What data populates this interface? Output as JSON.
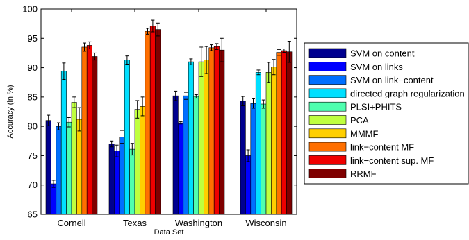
{
  "chart_data": {
    "type": "bar",
    "xlabel": "Data Set",
    "ylabel": "Accuracy (in %)",
    "ylim": [
      65,
      100
    ],
    "yticks": [
      65,
      70,
      75,
      80,
      85,
      90,
      95,
      100
    ],
    "categories": [
      "Cornell",
      "Texas",
      "Washington",
      "Wisconsin"
    ],
    "grid": false,
    "legend_position": "right",
    "error_bars": true,
    "series": [
      {
        "name": "SVM on content",
        "color": "#00008f",
        "values": [
          81.0,
          77.0,
          85.2,
          84.3
        ],
        "errors": [
          0.9,
          0.5,
          0.8,
          0.8
        ]
      },
      {
        "name": "SVM on links",
        "color": "#0000ff",
        "values": [
          70.2,
          75.8,
          80.6,
          75.0
        ],
        "errors": [
          0.6,
          1.0,
          0.2,
          1.0
        ]
      },
      {
        "name": "SVM on link−content",
        "color": "#006fff",
        "values": [
          80.0,
          78.2,
          85.2,
          83.9
        ],
        "errors": [
          0.6,
          1.1,
          0.6,
          0.8
        ]
      },
      {
        "name": "directed graph regularization",
        "color": "#00dfff",
        "values": [
          89.4,
          91.3,
          91.0,
          89.2
        ],
        "errors": [
          1.4,
          0.7,
          0.5,
          0.4
        ]
      },
      {
        "name": "PLSI+PHITS",
        "color": "#4fffaf",
        "values": [
          80.7,
          76.1,
          85.1,
          83.8
        ],
        "errors": [
          0.8,
          1.0,
          0.3,
          0.7
        ]
      },
      {
        "name": "PCA",
        "color": "#bfff3f",
        "values": [
          84.1,
          82.9,
          91.0,
          89.2
        ],
        "errors": [
          0.9,
          1.5,
          2.5,
          1.7
        ]
      },
      {
        "name": "MMMF",
        "color": "#ffcf00",
        "values": [
          81.2,
          83.4,
          91.3,
          90.1
        ],
        "errors": [
          2.0,
          1.6,
          2.3,
          1.3
        ]
      },
      {
        "name": "link−content MF",
        "color": "#ff6f00",
        "values": [
          93.5,
          96.2,
          93.4,
          92.6
        ],
        "errors": [
          0.7,
          0.5,
          0.5,
          0.5
        ]
      },
      {
        "name": "link−content sup. MF",
        "color": "#ef0000",
        "values": [
          93.8,
          97.1,
          93.6,
          92.9
        ],
        "errors": [
          0.6,
          1.0,
          0.5,
          0.3
        ]
      },
      {
        "name": "RRMF",
        "color": "#7f0000",
        "values": [
          91.9,
          96.5,
          93.0,
          92.7
        ],
        "errors": [
          0.6,
          1.1,
          2.0,
          1.8
        ]
      }
    ]
  }
}
